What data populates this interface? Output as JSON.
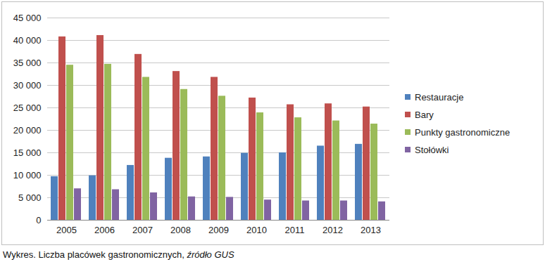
{
  "chart_data": {
    "type": "bar",
    "caption": "Wykres. Liczba placówek gastronomicznych, źródło GUS",
    "categories": [
      "2005",
      "2006",
      "2007",
      "2008",
      "2009",
      "2010",
      "2011",
      "2012",
      "2013"
    ],
    "series": [
      {
        "name": "Restauracje",
        "color": "#4f81bd",
        "values": [
          9700,
          9900,
          12200,
          13800,
          14100,
          14900,
          15000,
          16500,
          16900
        ]
      },
      {
        "name": "Bary",
        "color": "#c0504d",
        "values": [
          40800,
          41100,
          36900,
          33100,
          31800,
          27200,
          25700,
          25900,
          25200
        ]
      },
      {
        "name": "Punkty gastronomiczne",
        "color": "#9bbb59",
        "values": [
          34500,
          34700,
          31800,
          29100,
          27600,
          23900,
          22800,
          22100,
          21400
        ]
      },
      {
        "name": "Stołówki",
        "color": "#8064a2",
        "values": [
          7000,
          6800,
          6100,
          5200,
          5100,
          4500,
          4300,
          4300,
          4100
        ]
      }
    ],
    "ylim": [
      0,
      45000
    ],
    "yticks": [
      0,
      {
        "value": 5000,
        "label": "5 000"
      },
      {
        "value": 10000,
        "label": "10 000"
      },
      {
        "value": 15000,
        "label": "15 000"
      },
      {
        "value": 20000,
        "label": "20 000"
      },
      {
        "value": 25000,
        "label": "25 000"
      },
      {
        "value": 30000,
        "label": "30 000"
      },
      {
        "value": 35000,
        "label": "35 000"
      },
      {
        "value": 40000,
        "label": "40 000"
      },
      {
        "value": 45000,
        "label": "45 000"
      }
    ],
    "grid": true,
    "legend": "right"
  }
}
